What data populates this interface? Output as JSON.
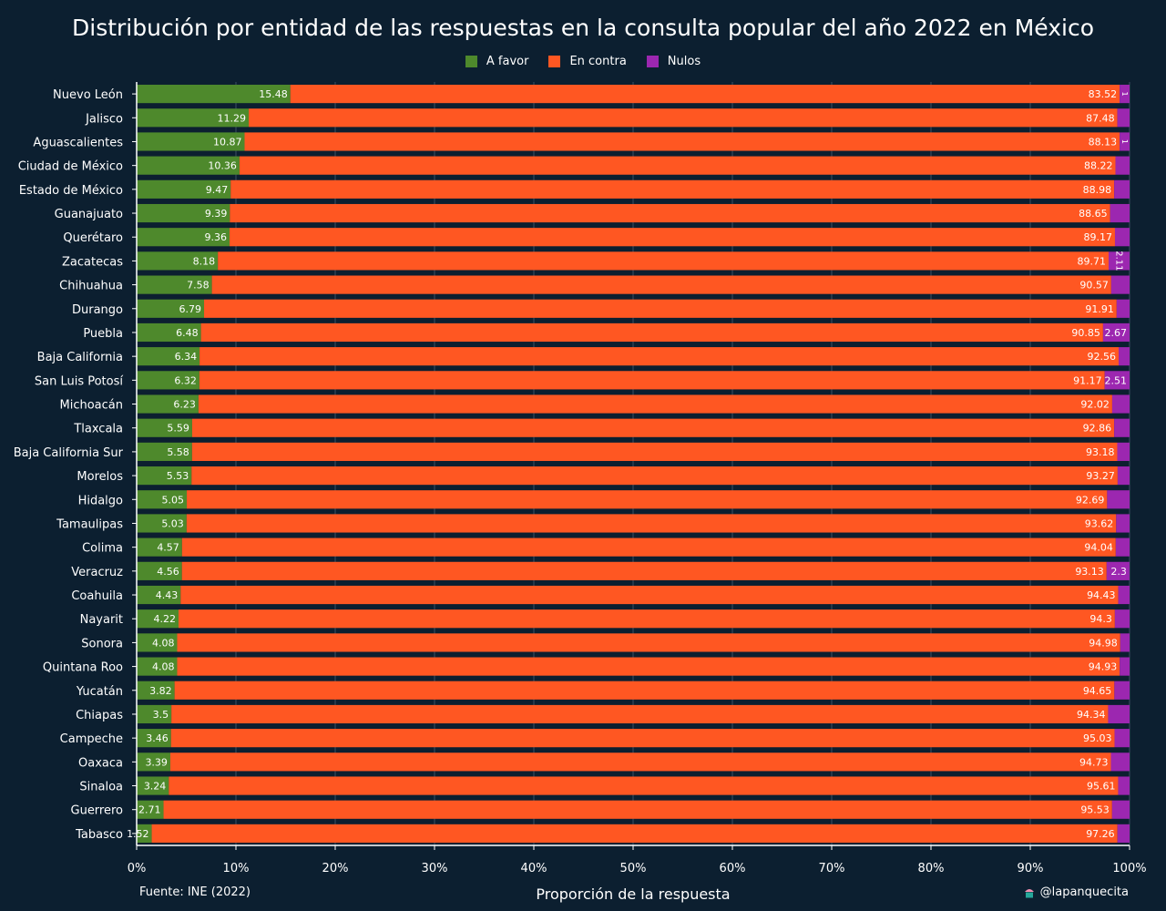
{
  "chart_data": {
    "type": "bar",
    "orientation": "horizontal",
    "stacked": true,
    "normalized": true,
    "title": "Distribución por entidad de las respuestas en la consulta popular del año 2022 en México",
    "xlabel": "Proporción de la respuesta",
    "ylabel": "",
    "xlim": [
      0,
      100
    ],
    "xticks": [
      "0%",
      "10%",
      "20%",
      "30%",
      "40%",
      "50%",
      "60%",
      "70%",
      "80%",
      "90%",
      "100%"
    ],
    "legend_position": "top-center",
    "grid": true,
    "categories": [
      "Nuevo León",
      "Jalisco",
      "Aguascalientes",
      "Ciudad de México",
      "Estado de México",
      "Guanajuato",
      "Querétaro",
      "Zacatecas",
      "Chihuahua",
      "Durango",
      "Puebla",
      "Baja California",
      "San Luis Potosí",
      "Michoacán",
      "Tlaxcala",
      "Baja California Sur",
      "Morelos",
      "Hidalgo",
      "Tamaulipas",
      "Colima",
      "Veracruz",
      "Coahuila",
      "Nayarit",
      "Sonora",
      "Quintana Roo",
      "Yucatán",
      "Chiapas",
      "Campeche",
      "Oaxaca",
      "Sinaloa",
      "Guerrero",
      "Tabasco"
    ],
    "series": [
      {
        "name": "A favor",
        "color": "#4e892c",
        "values": [
          15.48,
          11.29,
          10.87,
          10.36,
          9.47,
          9.39,
          9.36,
          8.18,
          7.58,
          6.79,
          6.48,
          6.34,
          6.32,
          6.23,
          5.59,
          5.58,
          5.53,
          5.05,
          5.03,
          4.57,
          4.56,
          4.43,
          4.22,
          4.08,
          4.08,
          3.82,
          3.5,
          3.46,
          3.39,
          3.24,
          2.71,
          1.52
        ]
      },
      {
        "name": "En contra",
        "color": "#ff5722",
        "values": [
          83.52,
          87.48,
          88.13,
          88.22,
          88.98,
          88.65,
          89.17,
          89.71,
          90.57,
          91.91,
          90.85,
          92.56,
          91.17,
          92.02,
          92.86,
          93.18,
          93.27,
          92.69,
          93.62,
          94.04,
          93.13,
          94.43,
          94.3,
          94.98,
          94.93,
          94.65,
          94.34,
          95.03,
          94.73,
          95.61,
          95.53,
          97.26
        ]
      },
      {
        "name": "Nulos",
        "color": "#9c27b0",
        "values": [
          1,
          1.23,
          1,
          1.42,
          1.55,
          1.96,
          1.47,
          2.11,
          1.85,
          1.3,
          2.67,
          1.1,
          2.51,
          1.75,
          1.55,
          1.24,
          1.2,
          2.26,
          1.35,
          1.39,
          2.3,
          1.14,
          1.48,
          0.94,
          0.99,
          1.53,
          2.16,
          1.51,
          1.88,
          1.15,
          1.76,
          1.22
        ],
        "labels": [
          "1",
          "",
          "1",
          "",
          "",
          "",
          "",
          "2.11",
          "",
          "",
          "2.67",
          "",
          "2.51",
          "",
          "",
          "",
          "",
          "",
          "",
          "",
          "2.3",
          "",
          "",
          "",
          "",
          "",
          "",
          "",
          "",
          "",
          "",
          ""
        ]
      }
    ]
  },
  "footer": {
    "source": "Fuente: INE (2022)",
    "credit": "@lapanquecita",
    "credit_icon": "cupcake-icon"
  }
}
